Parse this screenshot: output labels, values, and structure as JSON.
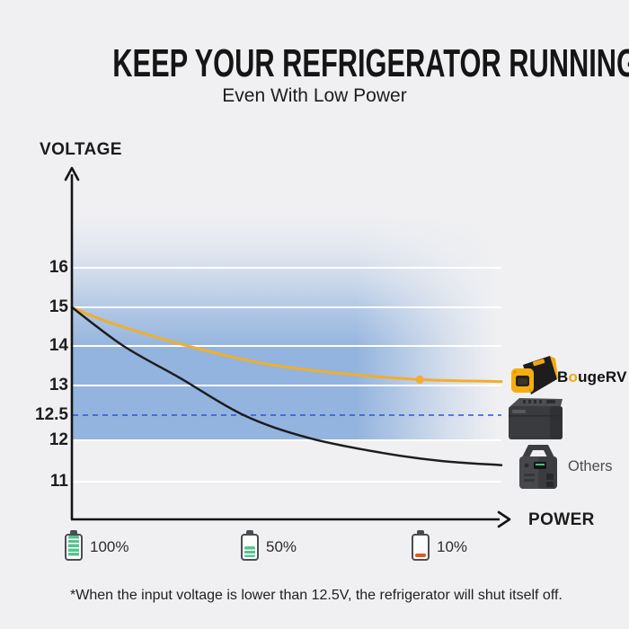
{
  "header": {
    "title": "KEEP YOUR REFRIGERATOR RUNNING",
    "subtitle": "Even With Low Power"
  },
  "chart_data": {
    "type": "line",
    "title": "KEEP YOUR REFRIGERATOR RUNNING — Even With Low Power",
    "xlabel": "POWER",
    "ylabel": "VOLTAGE",
    "y_ticks": [
      "16",
      "15",
      "14",
      "13",
      "12.5",
      "12",
      "11"
    ],
    "ylim": [
      10.5,
      17
    ],
    "grid": "horizontal-white",
    "threshold": {
      "value": 12.5,
      "style": "dashed",
      "color": "#2f55cb"
    },
    "series": [
      {
        "name": "BougeRV",
        "color": "#f2ae2b",
        "width": 3,
        "points": [
          {
            "x": 0.0,
            "v": 15.0
          },
          {
            "x": 0.09,
            "v": 14.6
          },
          {
            "x": 0.27,
            "v": 14.0
          },
          {
            "x": 0.45,
            "v": 13.55
          },
          {
            "x": 0.63,
            "v": 13.3
          },
          {
            "x": 0.81,
            "v": 13.15
          },
          {
            "x": 1.0,
            "v": 13.1
          }
        ],
        "marker": {
          "x": 0.81,
          "v": 13.15
        }
      },
      {
        "name": "Others",
        "color": "#1d1d1e",
        "width": 2.5,
        "points": [
          {
            "x": 0.0,
            "v": 15.0
          },
          {
            "x": 0.12,
            "v": 14.0
          },
          {
            "x": 0.25,
            "v": 13.2
          },
          {
            "x": 0.4,
            "v": 12.5
          },
          {
            "x": 0.55,
            "v": 12.05
          },
          {
            "x": 0.72,
            "v": 11.7
          },
          {
            "x": 0.86,
            "v": 11.5
          },
          {
            "x": 1.0,
            "v": 11.4
          }
        ]
      }
    ],
    "legend_position": "right-of-curves"
  },
  "products": {
    "bougerv": {
      "part1": "B",
      "part2": "o",
      "part3": "ugeRV"
    },
    "others_label": "Others"
  },
  "legend": {
    "items": [
      {
        "label": "100%",
        "percent": 100,
        "color": "#55c38e",
        "striped": true
      },
      {
        "label": "50%",
        "percent": 50,
        "color": "#55c38e",
        "striped": true
      },
      {
        "label": "10%",
        "percent": 10,
        "color": "#e4561c",
        "striped": false
      }
    ]
  },
  "footnote": "*When the input voltage is lower than 12.5V, the refrigerator will shut itself off.",
  "colors": {
    "background": "#f0f0f2",
    "band_blue": "#93b4de",
    "dashed_blue": "#2f55cb",
    "bougerv_orange": "#f2ae2b",
    "curve_black": "#1d1d1e",
    "battery_green": "#55c38e",
    "battery_red": "#e4561c"
  }
}
